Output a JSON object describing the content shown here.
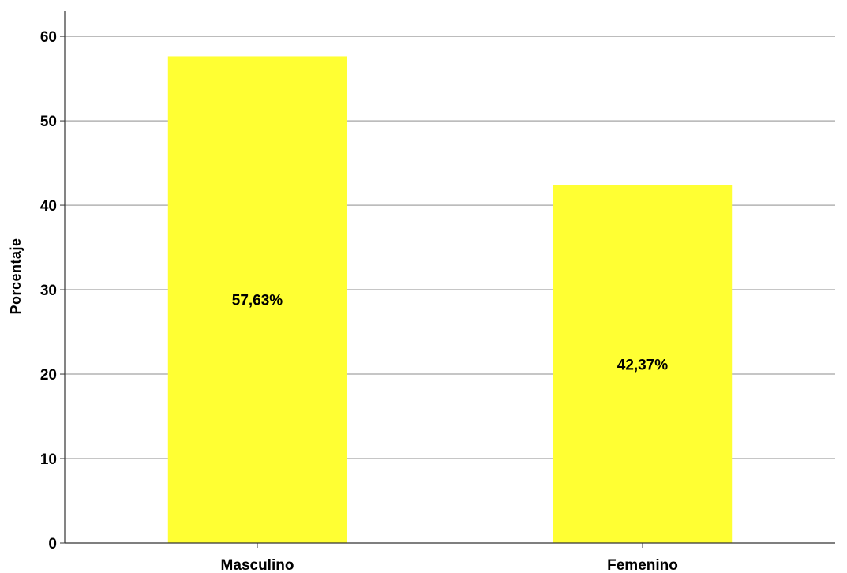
{
  "chart_data": {
    "type": "bar",
    "title": "",
    "xlabel": "",
    "ylabel": "Porcentaje",
    "categories": [
      "Masculino",
      "Femenino"
    ],
    "values": [
      57.63,
      42.37
    ],
    "data_labels": [
      "57,63%",
      "42,37%"
    ],
    "ylim": [
      0,
      63
    ],
    "yticks": [
      0,
      10,
      20,
      30,
      40,
      50,
      60
    ],
    "grid": true,
    "legend": "none",
    "bar_color": "#ffff33",
    "grid_color": "#b3b3b3",
    "axis_color": "#333333"
  }
}
